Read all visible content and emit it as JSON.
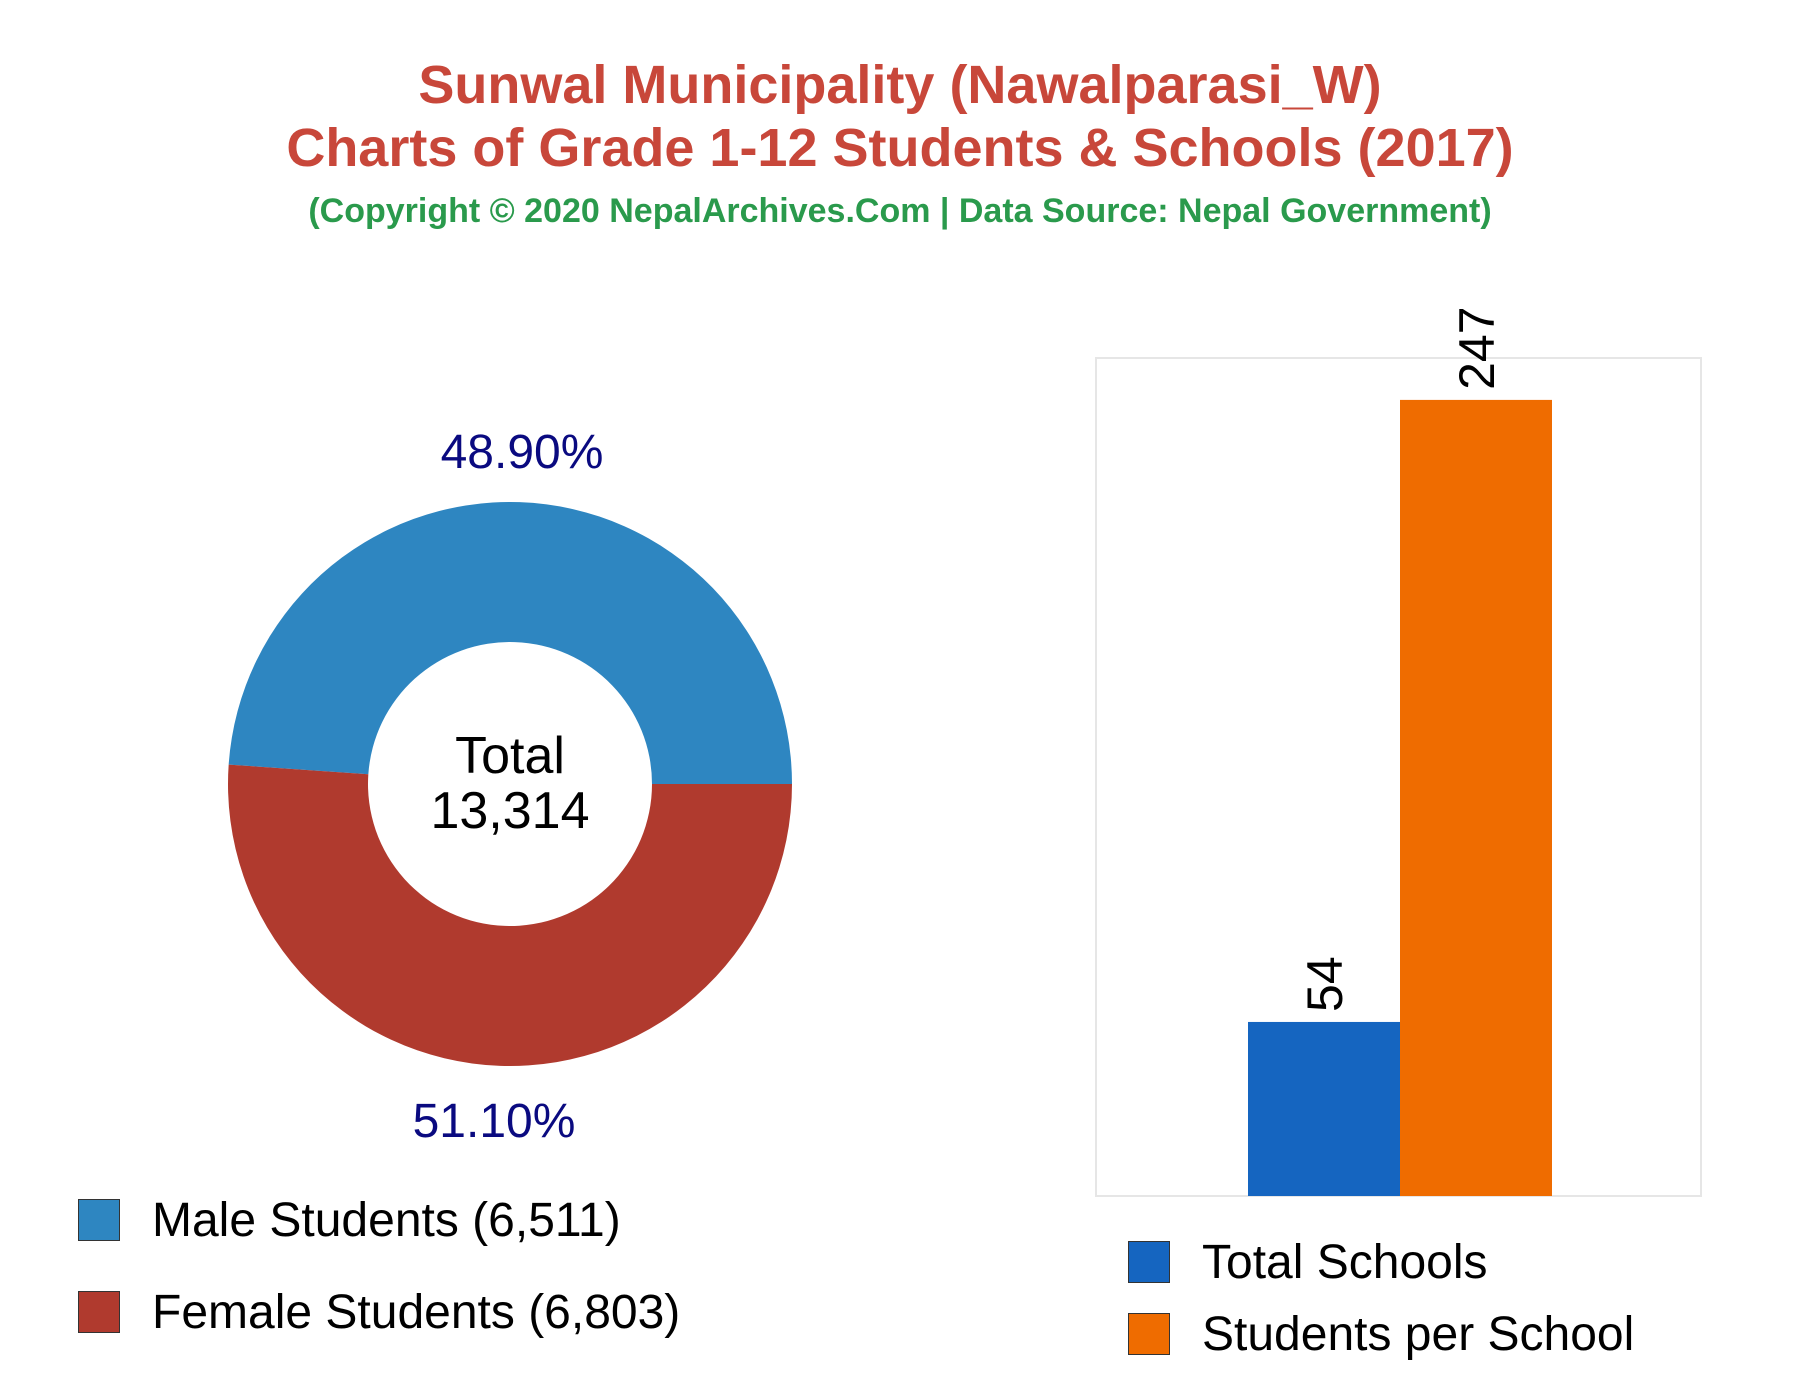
{
  "header": {
    "title_line1": "Sunwal Municipality (Nawalparasi_W)",
    "title_line2": "Charts of Grade 1-12 Students & Schools (2017)",
    "subtitle": "(Copyright © 2020 NepalArchives.Com | Data Source: Nepal Government)"
  },
  "chart_data": [
    {
      "type": "pie",
      "variant": "donut",
      "center_label": "Total",
      "center_value": "13,314",
      "slices": [
        {
          "name": "Male Students (6,511)",
          "value": 6511,
          "percent_label": "48.90%",
          "color": "#2e86c1"
        },
        {
          "name": "Female Students (6,803)",
          "value": 6803,
          "percent_label": "51.10%",
          "color": "#b03a2e"
        }
      ],
      "percent_label_color": "#0a0a80",
      "legend_position": "bottom"
    },
    {
      "type": "bar",
      "categories": [
        "Total Schools",
        "Students per School"
      ],
      "values": [
        54,
        247
      ],
      "value_labels": [
        "54",
        "247"
      ],
      "colors": [
        "#1565c0",
        "#ef6c00"
      ],
      "ylim": [
        0,
        260
      ],
      "grid": false,
      "legend_position": "bottom"
    }
  ]
}
